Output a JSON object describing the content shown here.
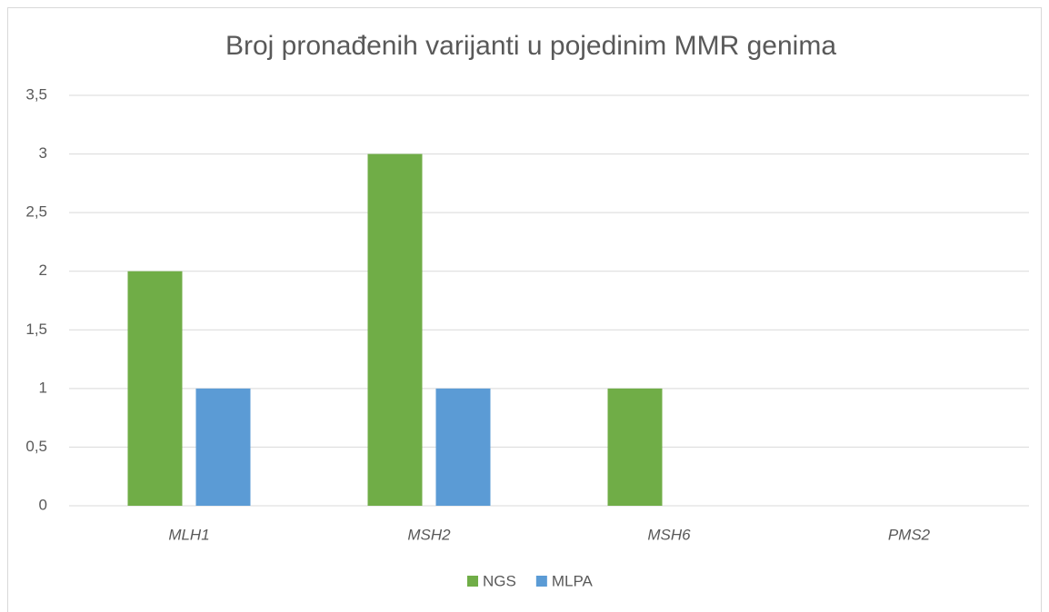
{
  "chart_data": {
    "type": "bar",
    "title": "Broj pronađenih varijanti u pojedinim MMR genima",
    "categories": [
      "MLH1",
      "MSH2",
      "MSH6",
      "PMS2"
    ],
    "series": [
      {
        "name": "NGS",
        "color": "#70ad47",
        "values": [
          2,
          3,
          1,
          0
        ]
      },
      {
        "name": "MLPA",
        "color": "#5b9bd5",
        "values": [
          1,
          1,
          0,
          0
        ]
      }
    ],
    "ylim": [
      0,
      3.5
    ],
    "yticks": [
      0,
      {
        "value": 0.5,
        "label": "0,5"
      },
      1,
      {
        "value": 1.5,
        "label": "1,5"
      },
      2,
      {
        "value": 2.5,
        "label": "2,5"
      },
      3,
      {
        "value": 3.5,
        "label": "3,5"
      }
    ],
    "grid": true,
    "legend": "bottom"
  }
}
